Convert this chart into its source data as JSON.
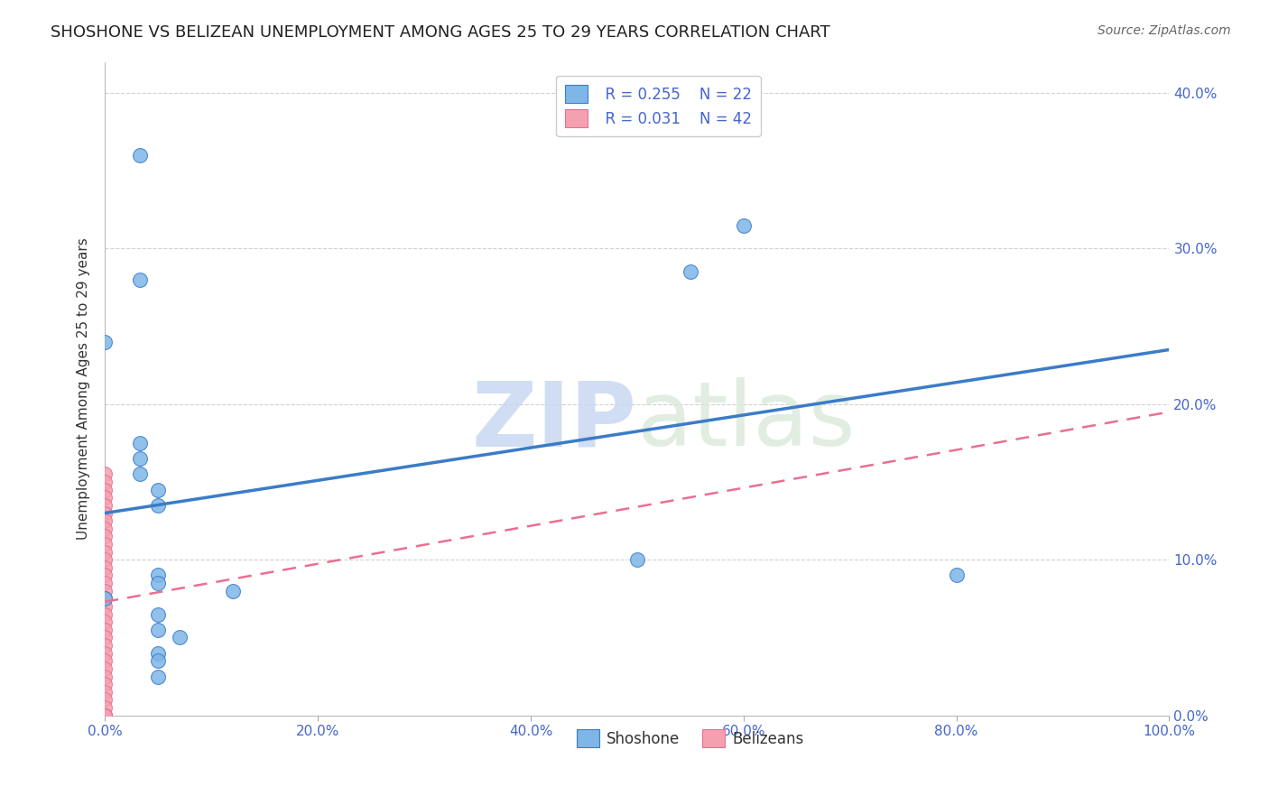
{
  "title": "SHOSHONE VS BELIZEAN UNEMPLOYMENT AMONG AGES 25 TO 29 YEARS CORRELATION CHART",
  "source": "Source: ZipAtlas.com",
  "ylabel": "Unemployment Among Ages 25 to 29 years",
  "watermark_zip": "ZIP",
  "watermark_atlas": "atlas",
  "xlim": [
    0.0,
    1.0
  ],
  "ylim": [
    0.0,
    0.42
  ],
  "xticks": [
    0.0,
    0.2,
    0.4,
    0.6,
    0.8,
    1.0
  ],
  "xtick_labels": [
    "0.0%",
    "20.0%",
    "40.0%",
    "60.0%",
    "80.0%",
    "100.0%"
  ],
  "yticks": [
    0.0,
    0.1,
    0.2,
    0.3,
    0.4
  ],
  "ytick_labels": [
    "0.0%",
    "10.0%",
    "20.0%",
    "30.0%",
    "40.0%"
  ],
  "shoshone_x": [
    0.033,
    0.033,
    0.0,
    0.033,
    0.033,
    0.033,
    0.05,
    0.05,
    0.05,
    0.05,
    0.0,
    0.05,
    0.5,
    0.6,
    0.55,
    0.8,
    0.12,
    0.05,
    0.07,
    0.05,
    0.05,
    0.05
  ],
  "shoshone_y": [
    0.36,
    0.28,
    0.24,
    0.175,
    0.165,
    0.155,
    0.145,
    0.135,
    0.09,
    0.085,
    0.075,
    0.065,
    0.1,
    0.315,
    0.285,
    0.09,
    0.08,
    0.055,
    0.05,
    0.04,
    0.035,
    0.025
  ],
  "belizean_x": [
    0.0,
    0.0,
    0.0,
    0.0,
    0.0,
    0.0,
    0.0,
    0.0,
    0.0,
    0.0,
    0.0,
    0.0,
    0.0,
    0.0,
    0.0,
    0.0,
    0.0,
    0.0,
    0.0,
    0.0,
    0.0,
    0.0,
    0.0,
    0.0,
    0.0,
    0.0,
    0.0,
    0.0,
    0.0,
    0.0,
    0.0,
    0.0,
    0.0,
    0.0,
    0.0,
    0.0,
    0.0,
    0.0,
    0.0,
    0.0,
    0.0,
    0.0
  ],
  "belizean_y": [
    0.155,
    0.15,
    0.145,
    0.14,
    0.135,
    0.13,
    0.125,
    0.12,
    0.115,
    0.11,
    0.105,
    0.1,
    0.095,
    0.09,
    0.085,
    0.08,
    0.075,
    0.07,
    0.065,
    0.06,
    0.055,
    0.05,
    0.045,
    0.04,
    0.035,
    0.03,
    0.025,
    0.02,
    0.015,
    0.01,
    0.005,
    0.0,
    0.0,
    0.0,
    0.0,
    0.0,
    0.0,
    0.0,
    0.0,
    0.0,
    0.0,
    0.0
  ],
  "shoshone_color": "#7EB6E8",
  "belizean_color": "#F4A0B0",
  "shoshone_line_color": "#3A7CC8",
  "belizean_line_color": "#E87090",
  "R_shoshone": 0.255,
  "N_shoshone": 22,
  "R_belizean": 0.031,
  "N_belizean": 42,
  "legend_label_shoshone": "Shoshone",
  "legend_label_belizean": "Belizeans",
  "grid_color": "#CCCCCC",
  "background_color": "#FFFFFF",
  "title_fontsize": 13,
  "axis_label_fontsize": 11,
  "tick_fontsize": 11,
  "legend_fontsize": 12,
  "blue_line_start": 0.13,
  "blue_line_end": 0.235,
  "pink_line_start": 0.073,
  "pink_line_end": 0.195
}
